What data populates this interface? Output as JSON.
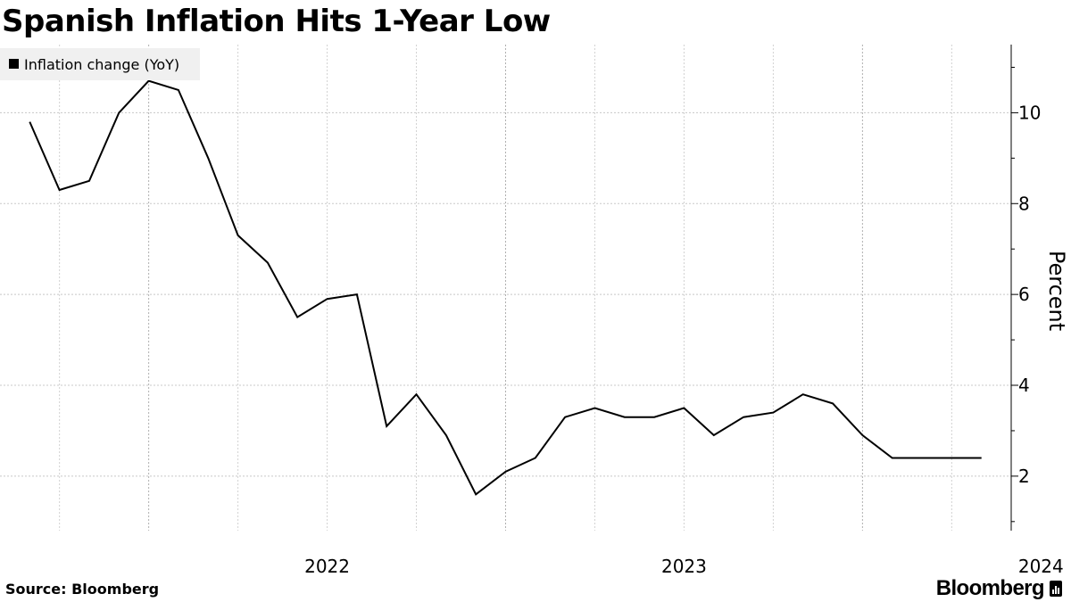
{
  "title": "Spanish Inflation Hits 1-Year Low",
  "footer": {
    "source": "Source: Bloomberg",
    "brand": "Bloomberg"
  },
  "chart_data": {
    "type": "line",
    "title": "Spanish Inflation Hits 1-Year Low",
    "xlabel": "",
    "ylabel": "Percent",
    "ylim": [
      0.8,
      11.5
    ],
    "y_ticks": [
      2,
      4,
      6,
      8,
      10
    ],
    "y_axis_side": "right",
    "x_range": [
      "2021-08",
      "2024-06"
    ],
    "x_tick_labels": [
      {
        "label": "2022",
        "x": "2022-07"
      },
      {
        "label": "2023",
        "x": "2023-07"
      },
      {
        "label": "2024",
        "x": "2024-07"
      }
    ],
    "grid": true,
    "legend_placement": "top-left",
    "line_color": "#000000",
    "series": [
      {
        "name": "Inflation change (YoY)",
        "x": [
          "2021-09",
          "2021-10",
          "2021-11",
          "2021-12",
          "2022-01",
          "2022-02",
          "2022-03",
          "2022-04",
          "2022-05",
          "2022-06",
          "2022-07",
          "2022-08",
          "2022-09",
          "2022-10",
          "2022-11",
          "2022-12",
          "2023-01",
          "2023-02",
          "2023-03",
          "2023-04",
          "2023-05",
          "2023-06",
          "2023-07",
          "2023-08",
          "2023-09",
          "2023-10",
          "2023-11",
          "2023-12",
          "2024-01",
          "2024-02",
          "2024-03",
          "2024-04",
          "2024-05"
        ],
        "values": [
          9.8,
          8.3,
          8.5,
          10.0,
          10.7,
          10.5,
          9.0,
          7.3,
          6.7,
          5.5,
          5.9,
          6.0,
          3.1,
          3.8,
          2.9,
          1.6,
          2.1,
          2.4,
          3.3,
          3.5,
          3.3,
          3.3,
          3.5,
          2.9,
          3.3,
          3.4,
          3.8,
          3.6,
          2.9,
          2.4,
          2.4,
          2.4,
          2.4
        ]
      }
    ]
  }
}
